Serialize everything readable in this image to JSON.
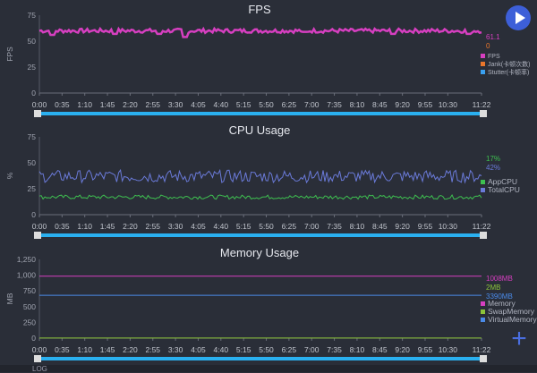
{
  "time_labels": [
    "0:00",
    "0:35",
    "1:10",
    "1:45",
    "2:20",
    "2:55",
    "3:30",
    "4:05",
    "4:40",
    "5:15",
    "5:50",
    "6:25",
    "7:00",
    "7:35",
    "8:10",
    "8:45",
    "9:20",
    "9:55",
    "10:30",
    "11:22"
  ],
  "charts": [
    {
      "title": "FPS",
      "ylabel": "FPS",
      "yticks": [
        "0",
        "25",
        "50",
        "75"
      ],
      "ymax": 75,
      "current": [
        {
          "text": "61.1",
          "color": "#d63fc0"
        },
        {
          "text": "0",
          "color": "#e8762c"
        }
      ],
      "legend": [
        {
          "label": "FPS",
          "color": "#d63fc0"
        },
        {
          "label": "Jank(卡顿次数)",
          "color": "#e8762c"
        },
        {
          "label": "Stutter(卡顿率)",
          "color": "#3aa0f0"
        }
      ],
      "series": [
        {
          "color": "#d63fc0",
          "base": 60,
          "noise": 2,
          "dips": [
            [
              0.03,
              56
            ],
            [
              0.17,
              57
            ],
            [
              0.27,
              57
            ],
            [
              0.33,
              54
            ],
            [
              0.6,
              59
            ],
            [
              0.8,
              57
            ],
            [
              0.97,
              57
            ]
          ]
        }
      ]
    },
    {
      "title": "CPU Usage",
      "ylabel": "%",
      "yticks": [
        "0",
        "25",
        "50",
        "75"
      ],
      "ymax": 75,
      "current": [
        {
          "text": "17%",
          "color": "#3ec050"
        },
        {
          "text": "42%",
          "color": "#6a7ad8"
        }
      ],
      "legend": [
        {
          "label": "AppCPU",
          "color": "#3ec050"
        },
        {
          "label": "TotalCPU",
          "color": "#6a7ad8"
        }
      ],
      "series": [
        {
          "color": "#3ec050",
          "base": 17,
          "noise": 2
        },
        {
          "color": "#6a7ad8",
          "base": 37,
          "noise": 6
        }
      ]
    },
    {
      "title": "Memory Usage",
      "ylabel": "MB",
      "yticks": [
        "0",
        "250",
        "500",
        "750",
        "1,000",
        "1,250"
      ],
      "ymax": 1250,
      "current": [
        {
          "text": "1008MB",
          "color": "#d63fc0"
        },
        {
          "text": "2MB",
          "color": "#8cc43a"
        },
        {
          "text": "3390MB",
          "color": "#4a8ae8"
        }
      ],
      "legend": [
        {
          "label": "Memory",
          "color": "#d63fc0"
        },
        {
          "label": "SwapMemory",
          "color": "#8cc43a"
        },
        {
          "label": "VirtualMemory",
          "color": "#4a8ae8"
        }
      ],
      "series": [
        {
          "color": "#d63fc0",
          "base": 985,
          "noise": 0
        },
        {
          "color": "#8cc43a",
          "base": 2,
          "noise": 0
        },
        {
          "color": "#4a8ae8",
          "base": 680,
          "noise": 0
        }
      ]
    }
  ],
  "bottom": {
    "label": "LOG"
  }
}
